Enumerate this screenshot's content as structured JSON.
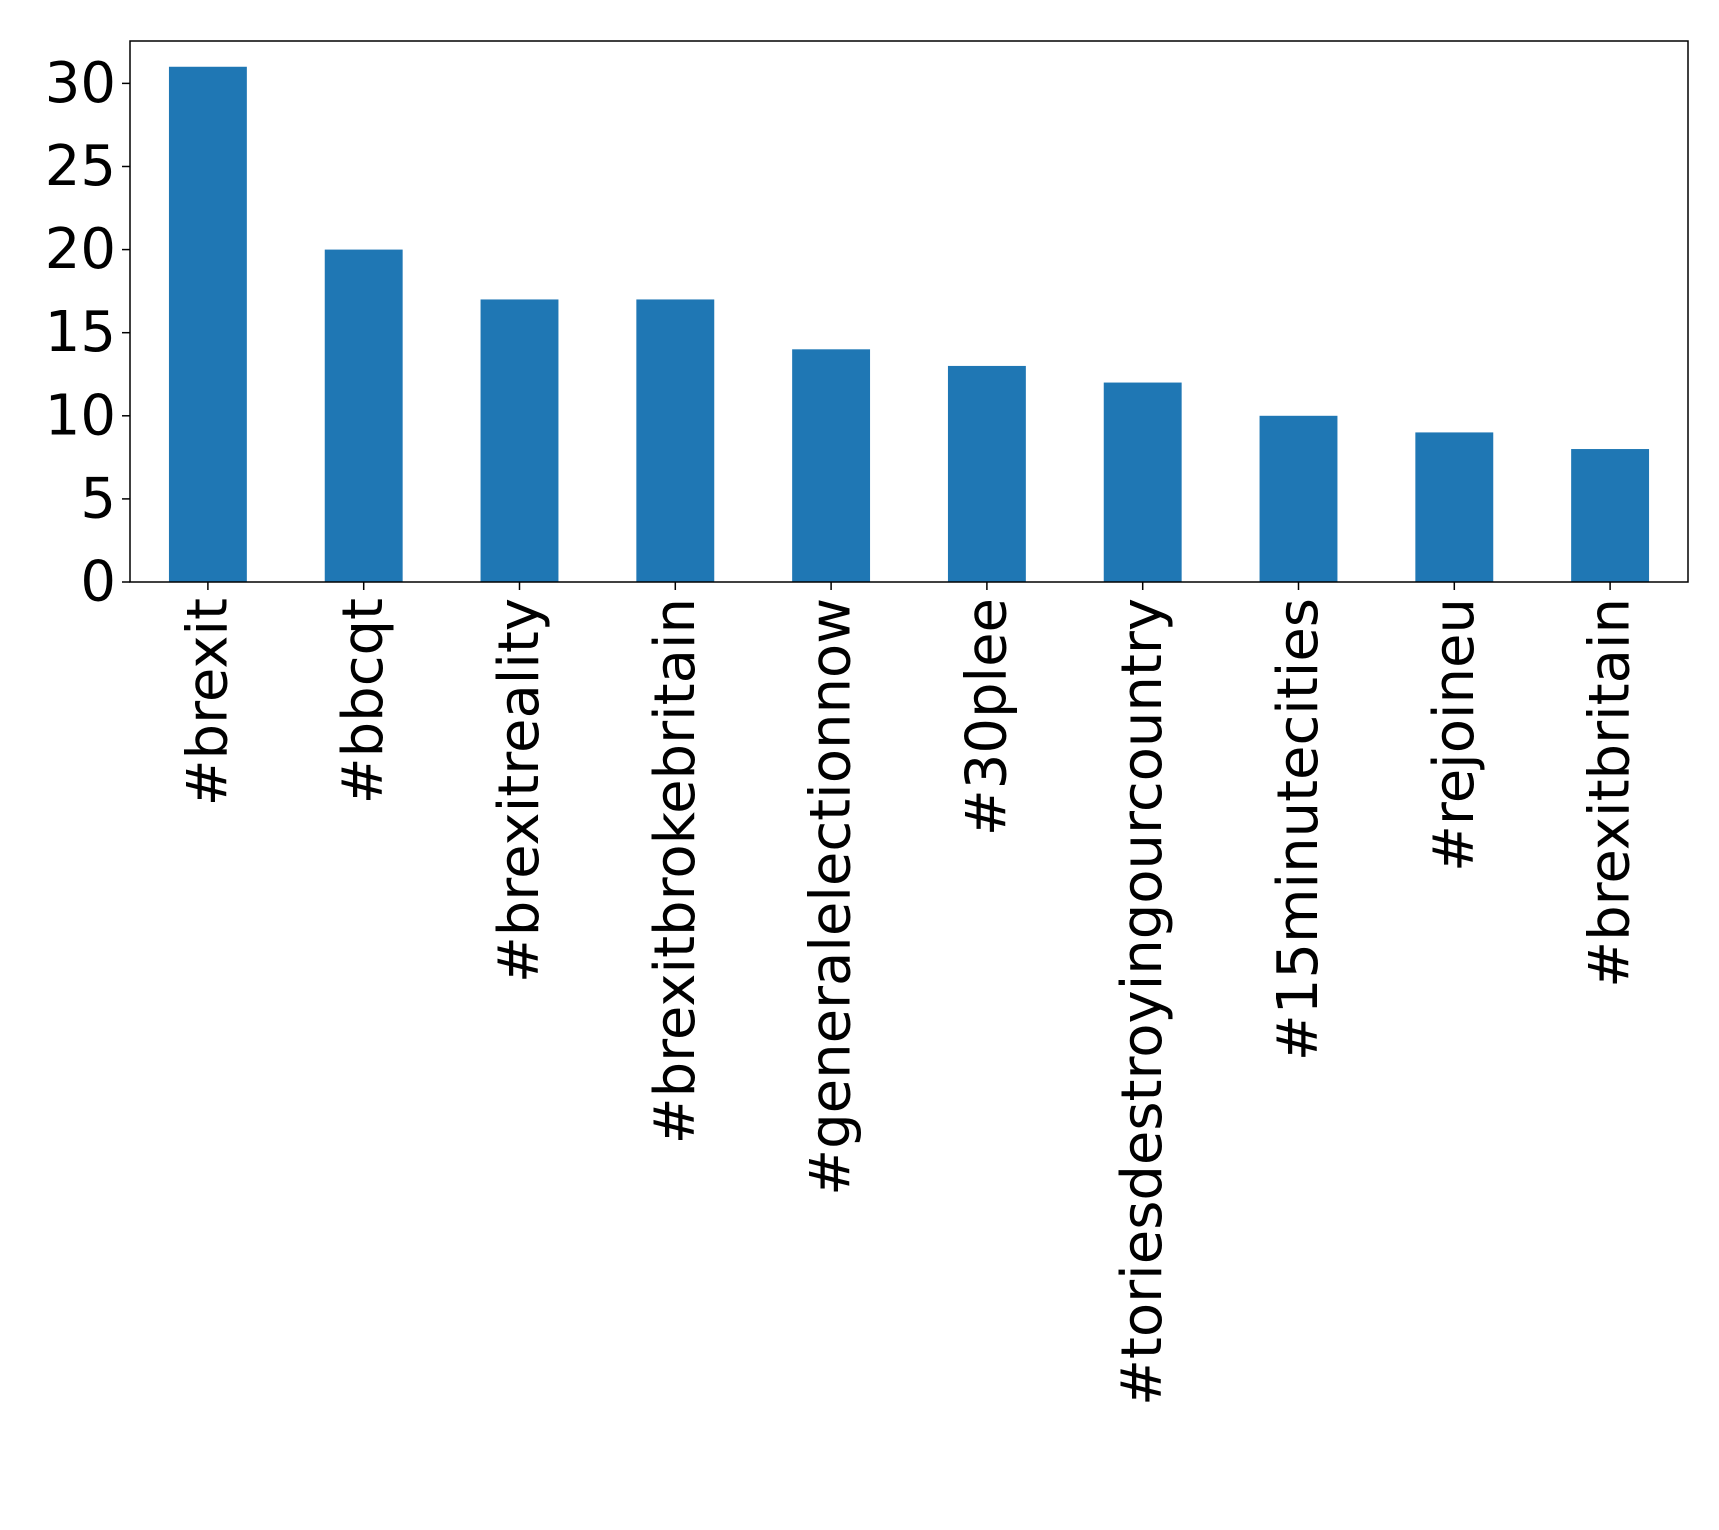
{
  "chart_data": {
    "type": "bar",
    "title": "",
    "xlabel": "",
    "ylabel": "",
    "categories": [
      "#brexit",
      "#bbcqt",
      "#brexitreality",
      "#brexitbrokebritain",
      "#generalelectionnow",
      "#30plee",
      "#toriesdestroyingourcountry",
      "#15minutecities",
      "#rejoineu",
      "#brexitbritain"
    ],
    "values": [
      31,
      20,
      17,
      17,
      14,
      13,
      12,
      10,
      9,
      8
    ],
    "ylim": [
      0,
      32.55
    ],
    "yticks": [
      0,
      5,
      10,
      15,
      20,
      25,
      30
    ],
    "grid": false,
    "bar_color": "#1f77b4",
    "legend": "none"
  }
}
